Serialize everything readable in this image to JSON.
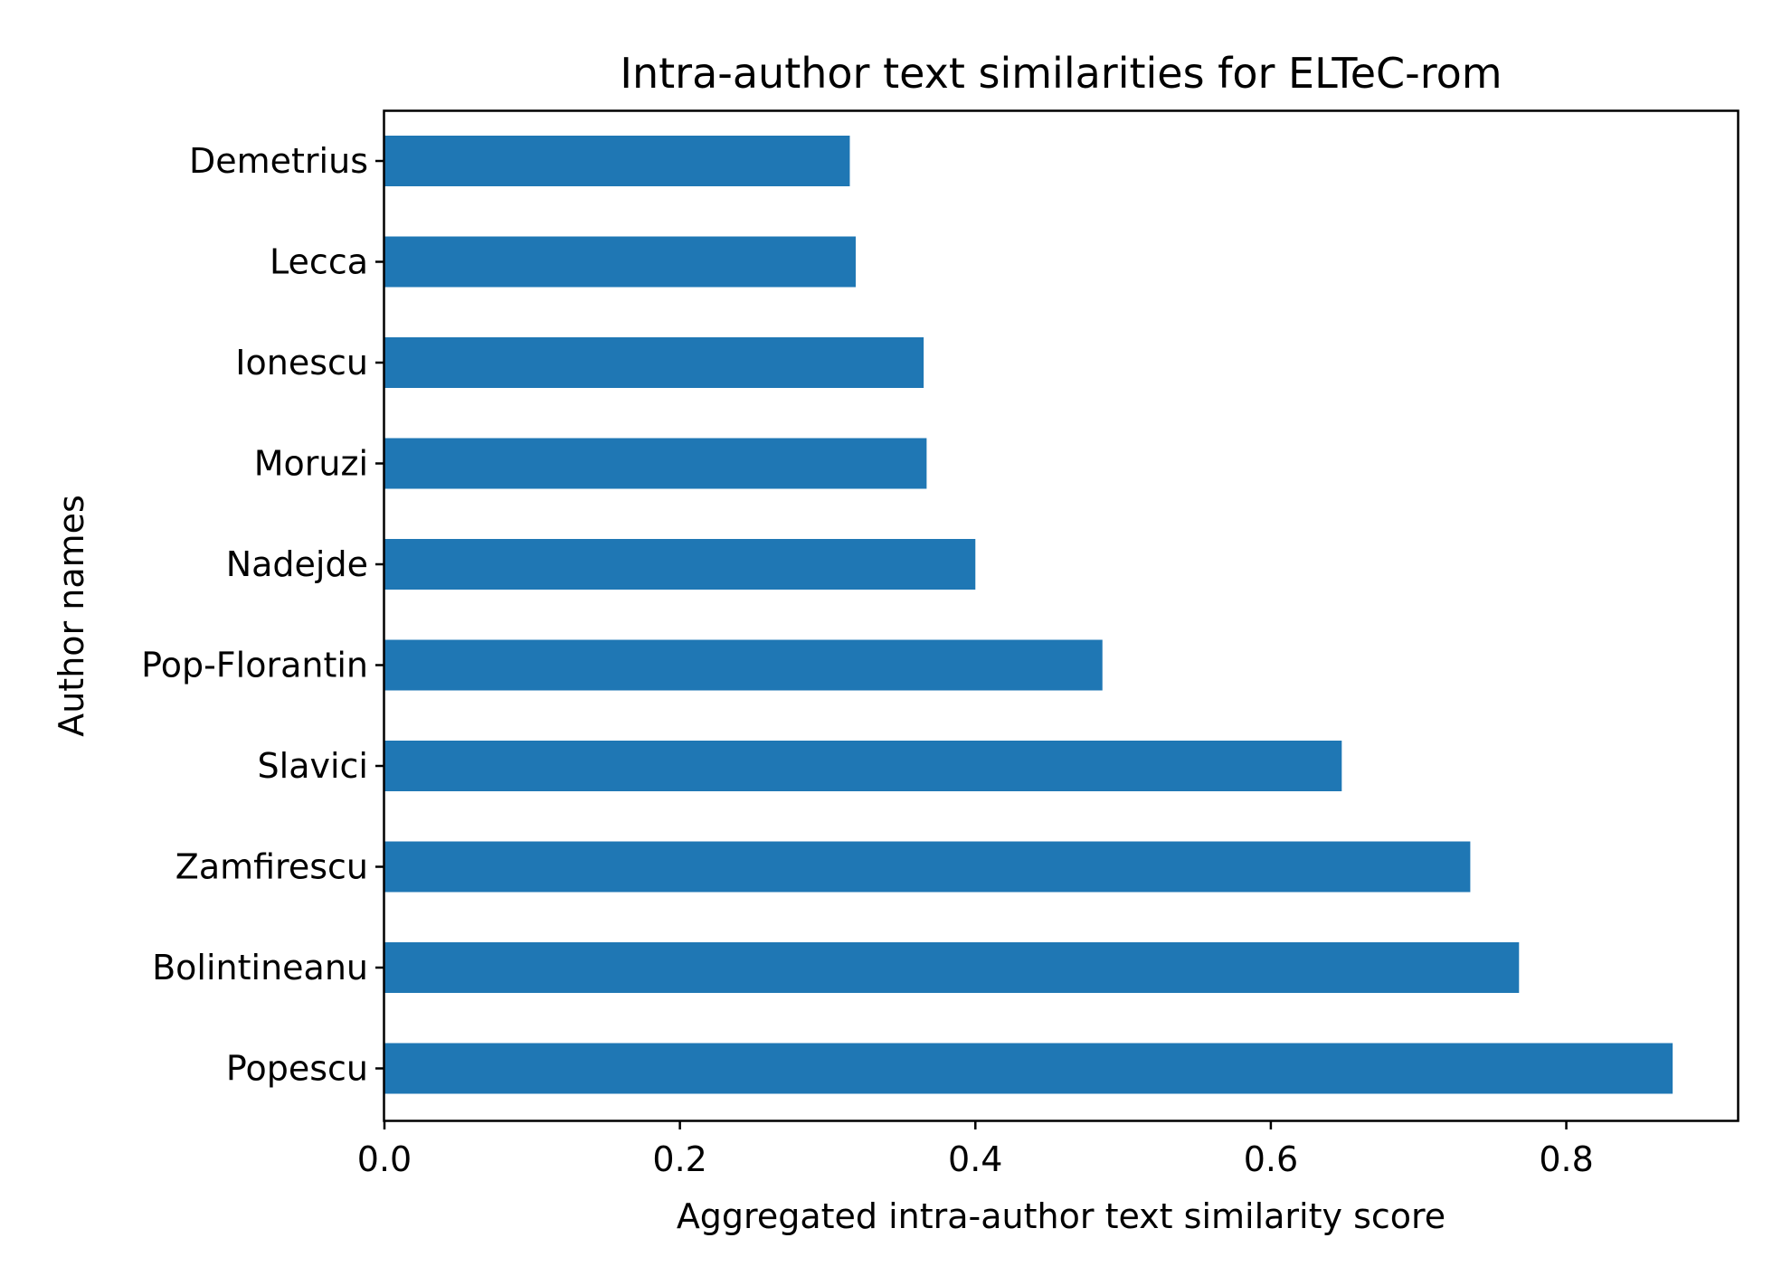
{
  "chart_data": {
    "type": "bar",
    "orientation": "horizontal",
    "title": "Intra-author text similarities for ELTeC-rom",
    "xlabel": "Aggregated intra-author text similarity score",
    "ylabel": "Author names",
    "categories": [
      "Demetrius",
      "Lecca",
      "Ionescu",
      "Moruzi",
      "Nadejde",
      "Pop-Florantin",
      "Slavici",
      "Zamfirescu",
      "Bolintineanu",
      "Popescu"
    ],
    "values": [
      0.315,
      0.319,
      0.365,
      0.367,
      0.4,
      0.486,
      0.648,
      0.735,
      0.768,
      0.872
    ],
    "xlim": [
      0,
      0.916
    ],
    "xticks": [
      0.0,
      0.2,
      0.4,
      0.6,
      0.8
    ],
    "xtick_labels": [
      "0.0",
      "0.2",
      "0.4",
      "0.6",
      "0.8"
    ],
    "grid": false,
    "legend": false,
    "bar_color": "#1f77b4"
  }
}
